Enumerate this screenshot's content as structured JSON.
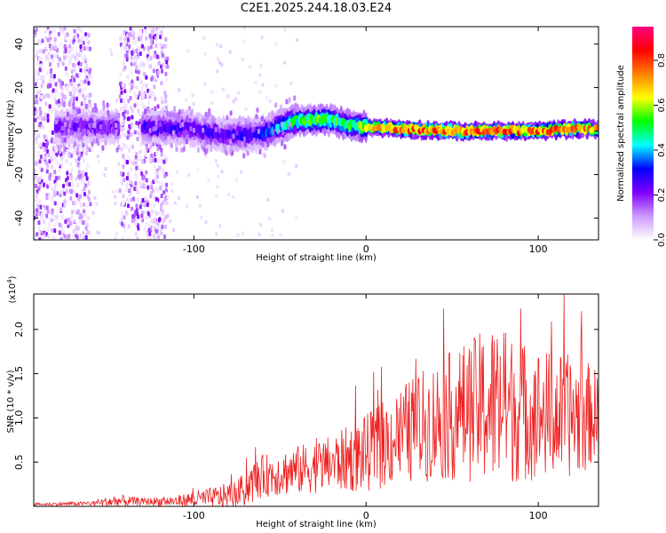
{
  "title": "C2E1.2025.244.18.03.E24",
  "chart_data": [
    {
      "type": "heatmap",
      "name": "spectrogram",
      "xlabel": "Height of straight line (km)",
      "ylabel": "Frequency (Hz)",
      "xlim": [
        -193,
        135
      ],
      "ylim": [
        -50,
        48
      ],
      "xticks": [
        -100,
        0,
        100
      ],
      "xtick_labels": [
        "-100",
        "0",
        "100"
      ],
      "yticks": [
        -40,
        -20,
        0,
        20,
        40
      ],
      "ytick_labels": [
        "-40",
        "-20",
        "0",
        "20",
        "40"
      ],
      "colorbar": {
        "label": "Normalized spectral amplitude",
        "range": [
          0,
          0.95
        ],
        "ticks": [
          0.0,
          0.2,
          0.4,
          0.6,
          0.8
        ],
        "tick_labels": [
          "0.0",
          "0.2",
          "0.4",
          "0.6",
          "0.8"
        ],
        "colormap": [
          "#ffffff",
          "#cc99ff",
          "#7f00ff",
          "#0000ff",
          "#00ffff",
          "#00ff00",
          "#ffff00",
          "#ff8000",
          "#ff0000",
          "#ff0080"
        ]
      },
      "ridge": {
        "x": [
          -175,
          -150,
          -125,
          -100,
          -80,
          -60,
          -40,
          -30,
          -20,
          -10,
          0,
          20,
          50,
          80,
          100,
          120,
          135
        ],
        "freq": [
          2,
          2,
          2,
          1,
          -2,
          -1,
          5,
          5,
          5,
          3,
          2,
          1,
          0,
          0,
          0,
          1,
          1
        ],
        "peak_amplitude": [
          0.25,
          0.25,
          0.3,
          0.3,
          0.3,
          0.35,
          0.55,
          0.6,
          0.6,
          0.55,
          0.7,
          0.85,
          0.9,
          0.9,
          0.85,
          0.85,
          0.8
        ]
      },
      "noise_bands_x": [
        [
          -193,
          -160
        ],
        [
          -143,
          -115
        ]
      ]
    },
    {
      "type": "line",
      "name": "snr",
      "xlabel": "Height of straight line (km)",
      "ylabel": "SNR (10 * v/v)",
      "multiplier": "(x10",
      "multiplier_exp": "4",
      "multiplier_close": ")",
      "color": "#ee2222",
      "xlim": [
        -193,
        135
      ],
      "ylim": [
        0,
        2.4
      ],
      "xticks": [
        -100,
        0,
        100
      ],
      "xtick_labels": [
        "-100",
        "0",
        "100"
      ],
      "yticks": [
        0.5,
        1.0,
        1.5,
        2.0
      ],
      "ytick_labels": [
        "0.5",
        "1.0",
        "1.5",
        "2.0"
      ],
      "envelope": {
        "x": [
          -193,
          -160,
          -145,
          -130,
          -110,
          -100,
          -90,
          -75,
          -65,
          -60,
          -40,
          -20,
          0,
          20,
          40,
          60,
          75,
          90,
          110,
          125,
          135
        ],
        "mean": [
          0.02,
          0.03,
          0.05,
          0.05,
          0.05,
          0.07,
          0.08,
          0.12,
          0.25,
          0.32,
          0.38,
          0.45,
          0.55,
          0.75,
          0.9,
          1.0,
          1.05,
          1.0,
          0.95,
          0.95,
          1.0
        ],
        "spread": [
          0.02,
          0.03,
          0.1,
          0.05,
          0.08,
          0.12,
          0.15,
          0.2,
          0.3,
          0.3,
          0.35,
          0.4,
          0.55,
          0.7,
          0.85,
          1.0,
          1.2,
          1.0,
          0.9,
          0.85,
          0.6
        ]
      }
    }
  ]
}
